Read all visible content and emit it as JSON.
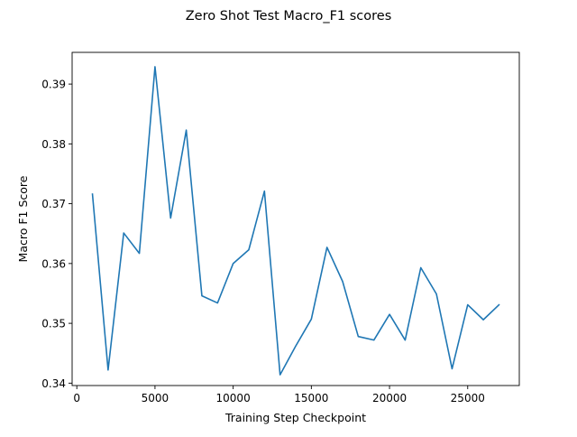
{
  "chart_data": {
    "type": "line",
    "title": "Zero Shot Test Macro_F1 scores",
    "xlabel": "Training Step Checkpoint",
    "ylabel": "Macro F1 Score",
    "xlim": [
      -300,
      28300
    ],
    "ylim": [
      0.3396,
      0.3953
    ],
    "xticks": [
      0,
      5000,
      10000,
      15000,
      20000,
      25000
    ],
    "xtick_labels": [
      "0",
      "5000",
      "10000",
      "15000",
      "20000",
      "25000"
    ],
    "yticks": [
      0.34,
      0.35,
      0.36,
      0.37,
      0.38,
      0.39
    ],
    "ytick_labels": [
      "0.34",
      "0.35",
      "0.36",
      "0.37",
      "0.38",
      "0.39"
    ],
    "grid": false,
    "line_color": "#1f77b4",
    "series": [
      {
        "x": [
          1000,
          2000,
          3000,
          4000,
          5000,
          6000,
          7000,
          8000,
          9000,
          10000,
          11000,
          12000,
          13000,
          14000,
          15000,
          16000,
          17000,
          18000,
          19000,
          20000,
          21000,
          22000,
          23000,
          24000,
          25000,
          26000,
          27000
        ],
        "y": [
          0.3716,
          0.3422,
          0.3651,
          0.3617,
          0.3929,
          0.3676,
          0.3823,
          0.3546,
          0.3534,
          0.36,
          0.3623,
          0.3721,
          0.3414,
          0.3462,
          0.3507,
          0.3627,
          0.357,
          0.3478,
          0.3472,
          0.3515,
          0.3472,
          0.3593,
          0.3549,
          0.3424,
          0.3531,
          0.3506,
          0.3531
        ]
      }
    ]
  }
}
